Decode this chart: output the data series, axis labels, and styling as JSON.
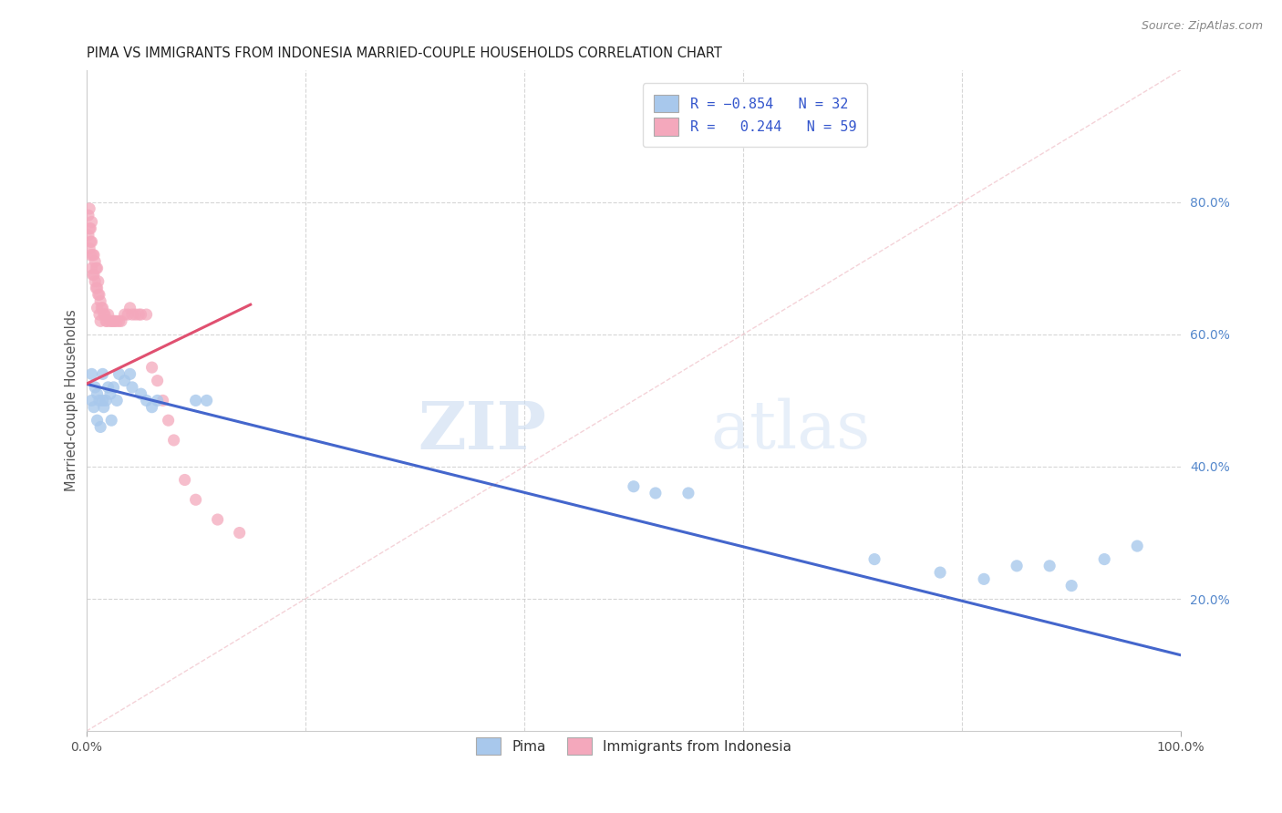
{
  "title": "PIMA VS IMMIGRANTS FROM INDONESIA MARRIED-COUPLE HOUSEHOLDS CORRELATION CHART",
  "source": "Source: ZipAtlas.com",
  "ylabel": "Married-couple Households",
  "xlim": [
    0,
    1.0
  ],
  "ylim": [
    0,
    1.0
  ],
  "ytick_labels_right": [
    "80.0%",
    "60.0%",
    "40.0%",
    "20.0%"
  ],
  "ytick_positions_right": [
    0.8,
    0.6,
    0.4,
    0.2
  ],
  "blue_color": "#A8C8EC",
  "pink_color": "#F4A8BC",
  "line_blue": "#4466CC",
  "line_pink": "#E05070",
  "line_diag": "#F0C0C8",
  "grid_color": "#CCCCCC",
  "watermark_zip": "ZIP",
  "watermark_atlas": "atlas",
  "pima_x": [
    0.005,
    0.005,
    0.007,
    0.008,
    0.01,
    0.01,
    0.012,
    0.013,
    0.015,
    0.015,
    0.016,
    0.018,
    0.02,
    0.022,
    0.023,
    0.025,
    0.028,
    0.03,
    0.035,
    0.04,
    0.042,
    0.05,
    0.055,
    0.06,
    0.065,
    0.1,
    0.11,
    0.5,
    0.52,
    0.55,
    0.72,
    0.78,
    0.82,
    0.85,
    0.88,
    0.9,
    0.93,
    0.96
  ],
  "pima_y": [
    0.54,
    0.5,
    0.49,
    0.52,
    0.51,
    0.47,
    0.5,
    0.46,
    0.54,
    0.5,
    0.49,
    0.5,
    0.52,
    0.51,
    0.47,
    0.52,
    0.5,
    0.54,
    0.53,
    0.54,
    0.52,
    0.51,
    0.5,
    0.49,
    0.5,
    0.5,
    0.5,
    0.37,
    0.36,
    0.36,
    0.26,
    0.24,
    0.23,
    0.25,
    0.25,
    0.22,
    0.26,
    0.28
  ],
  "indo_x": [
    0.002,
    0.002,
    0.003,
    0.003,
    0.003,
    0.004,
    0.004,
    0.004,
    0.005,
    0.005,
    0.005,
    0.006,
    0.006,
    0.007,
    0.007,
    0.008,
    0.008,
    0.009,
    0.009,
    0.01,
    0.01,
    0.01,
    0.011,
    0.011,
    0.012,
    0.012,
    0.013,
    0.013,
    0.014,
    0.015,
    0.016,
    0.017,
    0.018,
    0.019,
    0.02,
    0.022,
    0.023,
    0.025,
    0.026,
    0.028,
    0.03,
    0.032,
    0.035,
    0.038,
    0.04,
    0.042,
    0.045,
    0.048,
    0.05,
    0.055,
    0.06,
    0.065,
    0.07,
    0.075,
    0.08,
    0.09,
    0.1,
    0.12,
    0.14
  ],
  "indo_y": [
    0.78,
    0.75,
    0.79,
    0.76,
    0.73,
    0.76,
    0.74,
    0.72,
    0.77,
    0.74,
    0.7,
    0.72,
    0.69,
    0.72,
    0.69,
    0.71,
    0.68,
    0.7,
    0.67,
    0.7,
    0.67,
    0.64,
    0.68,
    0.66,
    0.66,
    0.63,
    0.65,
    0.62,
    0.64,
    0.64,
    0.63,
    0.63,
    0.62,
    0.62,
    0.63,
    0.62,
    0.62,
    0.62,
    0.62,
    0.62,
    0.62,
    0.62,
    0.63,
    0.63,
    0.64,
    0.63,
    0.63,
    0.63,
    0.63,
    0.63,
    0.55,
    0.53,
    0.5,
    0.47,
    0.44,
    0.38,
    0.35,
    0.32,
    0.3
  ]
}
